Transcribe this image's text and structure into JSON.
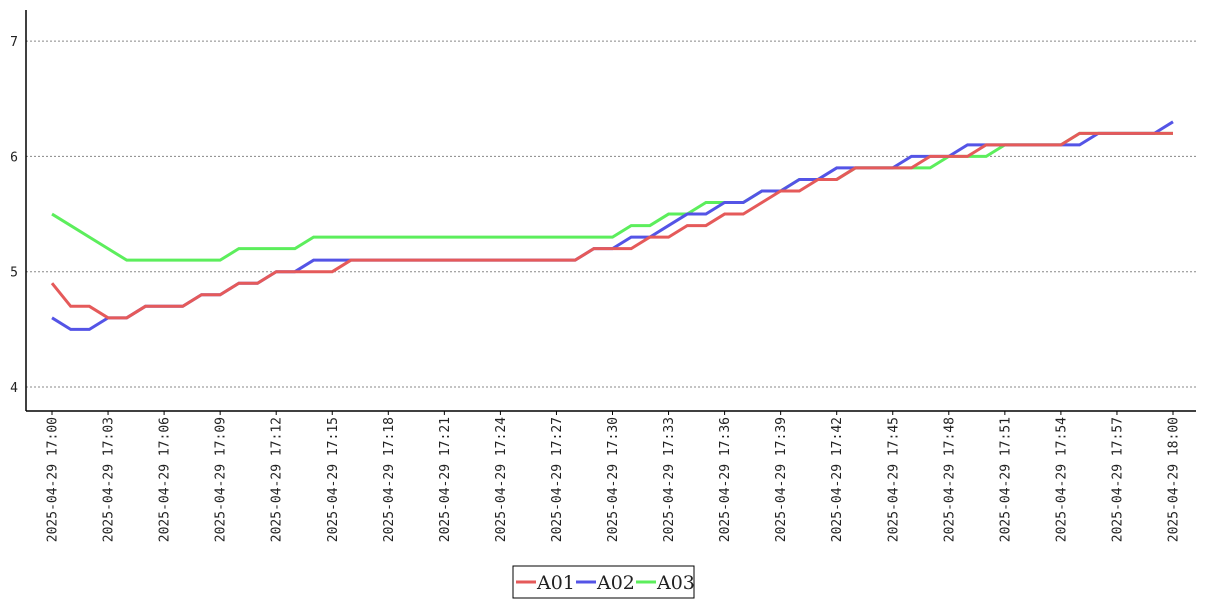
{
  "chart_data": {
    "type": "line",
    "title": "",
    "xlabel": "",
    "ylabel": "",
    "ylim": [
      3.8,
      7.2
    ],
    "y_ticks": [
      "4",
      "5",
      "6",
      "7"
    ],
    "grid": "horizontal dotted",
    "legend_position": "bottom-center",
    "x_tick_labels": [
      "2025-04-29 17:00",
      "2025-04-29 17:03",
      "2025-04-29 17:06",
      "2025-04-29 17:09",
      "2025-04-29 17:12",
      "2025-04-29 17:15",
      "2025-04-29 17:18",
      "2025-04-29 17:21",
      "2025-04-29 17:24",
      "2025-04-29 17:27",
      "2025-04-29 17:30",
      "2025-04-29 17:33",
      "2025-04-29 17:36",
      "2025-04-29 17:39",
      "2025-04-29 17:42",
      "2025-04-29 17:45",
      "2025-04-29 17:48",
      "2025-04-29 17:51",
      "2025-04-29 17:54",
      "2025-04-29 17:57",
      "2025-04-29 18:00"
    ],
    "x": [
      "2025-04-29 17:00",
      "2025-04-29 17:01",
      "2025-04-29 17:02",
      "2025-04-29 17:03",
      "2025-04-29 17:04",
      "2025-04-29 17:05",
      "2025-04-29 17:06",
      "2025-04-29 17:07",
      "2025-04-29 17:08",
      "2025-04-29 17:09",
      "2025-04-29 17:10",
      "2025-04-29 17:11",
      "2025-04-29 17:12",
      "2025-04-29 17:13",
      "2025-04-29 17:14",
      "2025-04-29 17:15",
      "2025-04-29 17:16",
      "2025-04-29 17:17",
      "2025-04-29 17:18",
      "2025-04-29 17:19",
      "2025-04-29 17:20",
      "2025-04-29 17:21",
      "2025-04-29 17:22",
      "2025-04-29 17:23",
      "2025-04-29 17:24",
      "2025-04-29 17:25",
      "2025-04-29 17:26",
      "2025-04-29 17:27",
      "2025-04-29 17:28",
      "2025-04-29 17:29",
      "2025-04-29 17:30",
      "2025-04-29 17:31",
      "2025-04-29 17:32",
      "2025-04-29 17:33",
      "2025-04-29 17:34",
      "2025-04-29 17:35",
      "2025-04-29 17:36",
      "2025-04-29 17:37",
      "2025-04-29 17:38",
      "2025-04-29 17:39",
      "2025-04-29 17:40",
      "2025-04-29 17:41",
      "2025-04-29 17:42",
      "2025-04-29 17:43",
      "2025-04-29 17:44",
      "2025-04-29 17:45",
      "2025-04-29 17:46",
      "2025-04-29 17:47",
      "2025-04-29 17:48",
      "2025-04-29 17:49",
      "2025-04-29 17:50",
      "2025-04-29 17:51",
      "2025-04-29 17:52",
      "2025-04-29 17:53",
      "2025-04-29 17:54",
      "2025-04-29 17:55",
      "2025-04-29 17:56",
      "2025-04-29 17:57",
      "2025-04-29 17:58",
      "2025-04-29 17:59",
      "2025-04-29 18:00"
    ],
    "series": [
      {
        "name": "A01",
        "color": "#e55a5a",
        "values": [
          4.9,
          4.7,
          4.7,
          4.6,
          4.6,
          4.7,
          4.7,
          4.7,
          4.8,
          4.8,
          4.9,
          4.9,
          5.0,
          5.0,
          5.0,
          5.0,
          5.1,
          5.1,
          5.1,
          5.1,
          5.1,
          5.1,
          5.1,
          5.1,
          5.1,
          5.1,
          5.1,
          5.1,
          5.1,
          5.2,
          5.2,
          5.2,
          5.3,
          5.3,
          5.4,
          5.4,
          5.5,
          5.5,
          5.6,
          5.7,
          5.7,
          5.8,
          5.8,
          5.9,
          5.9,
          5.9,
          5.9,
          6.0,
          6.0,
          6.0,
          6.1,
          6.1,
          6.1,
          6.1,
          6.1,
          6.2,
          6.2,
          6.2,
          6.2,
          6.2,
          6.2
        ]
      },
      {
        "name": "A02",
        "color": "#5454e6",
        "values": [
          4.6,
          4.5,
          4.5,
          4.6,
          4.6,
          4.7,
          4.7,
          4.7,
          4.8,
          4.8,
          4.9,
          4.9,
          5.0,
          5.0,
          5.1,
          5.1,
          5.1,
          5.1,
          5.1,
          5.1,
          5.1,
          5.1,
          5.1,
          5.1,
          5.1,
          5.1,
          5.1,
          5.1,
          5.1,
          5.2,
          5.2,
          5.3,
          5.3,
          5.4,
          5.5,
          5.5,
          5.6,
          5.6,
          5.7,
          5.7,
          5.8,
          5.8,
          5.9,
          5.9,
          5.9,
          5.9,
          6.0,
          6.0,
          6.0,
          6.1,
          6.1,
          6.1,
          6.1,
          6.1,
          6.1,
          6.1,
          6.2,
          6.2,
          6.2,
          6.2,
          6.3
        ]
      },
      {
        "name": "A03",
        "color": "#5cee5c",
        "values": [
          5.5,
          5.4,
          5.3,
          5.2,
          5.1,
          5.1,
          5.1,
          5.1,
          5.1,
          5.1,
          5.2,
          5.2,
          5.2,
          5.2,
          5.3,
          5.3,
          5.3,
          5.3,
          5.3,
          5.3,
          5.3,
          5.3,
          5.3,
          5.3,
          5.3,
          5.3,
          5.3,
          5.3,
          5.3,
          5.3,
          5.3,
          5.4,
          5.4,
          5.5,
          5.5,
          5.6,
          5.6,
          5.6,
          5.7,
          5.7,
          5.8,
          5.8,
          5.8,
          5.9,
          5.9,
          5.9,
          5.9,
          5.9,
          6.0,
          6.0,
          6.0,
          6.1,
          6.1,
          6.1,
          6.1,
          6.2,
          6.2,
          6.2,
          6.2,
          6.2,
          6.2
        ]
      }
    ]
  }
}
